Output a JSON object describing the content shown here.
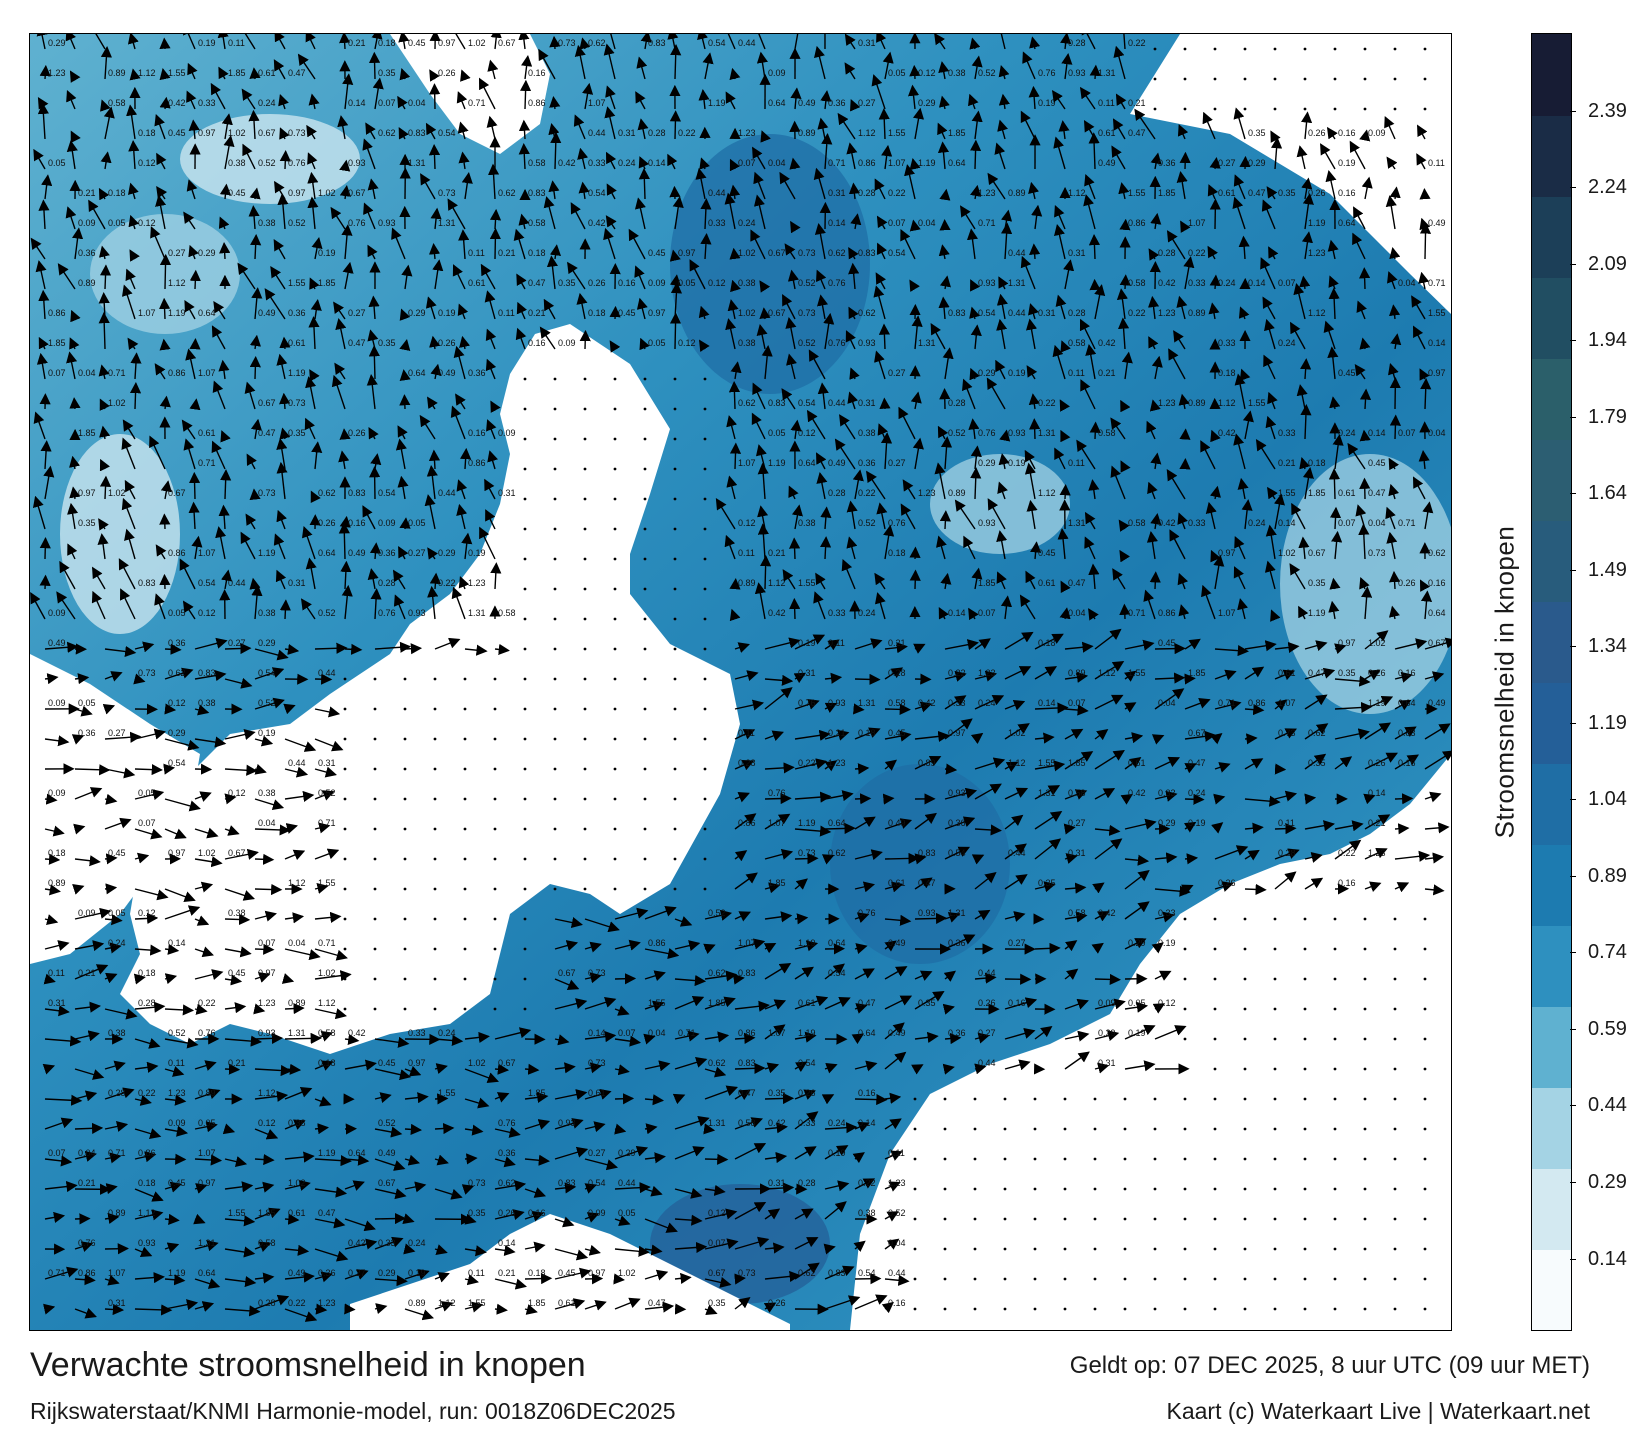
{
  "title": "Verwachte stroomsnelheid in knopen",
  "subtitle": "Rijkswaterstaat/KNMI Harmonie-model, run: 0018Z06DEC2025",
  "valid_time": "Geldt op: 07 DEC 2025, 8 uur UTC (09 uur MET)",
  "credit": "Kaart (c) Waterkaart Live | Waterkaart.net",
  "colorbar": {
    "label": "Stroomsnelheid in knopen",
    "ticks": [
      "2.39",
      "2.24",
      "2.09",
      "1.94",
      "1.79",
      "1.64",
      "1.49",
      "1.34",
      "1.19",
      "1.04",
      "0.89",
      "0.74",
      "0.59",
      "0.44",
      "0.29",
      "0.14"
    ],
    "range": [
      0.0,
      2.54
    ],
    "colors": [
      "#f7fbfd",
      "#d3e9f1",
      "#a4d3e4",
      "#5fb1d0",
      "#2e90bf",
      "#1d7bb0",
      "#1f6ea5",
      "#245f98",
      "#2a5a8c",
      "#285c7c",
      "#2c5e72",
      "#2b5f6a",
      "#214e62",
      "#1c3f58",
      "#1a2c46",
      "#171c34"
    ]
  },
  "map": {
    "sample_labels": [
      "0.29",
      "0.19",
      "0.11",
      "0.21",
      "0.18",
      "0.45",
      "0.97",
      "1.02",
      "0.67",
      "0.73",
      "0.62",
      "0.83",
      "0.54",
      "0.44",
      "0.31",
      "0.28",
      "0.22",
      "1.23",
      "0.89",
      "1.12",
      "1.55",
      "1.85",
      "0.61",
      "0.47",
      "0.35",
      "0.26",
      "0.16",
      "0.09",
      "0.05",
      "0.12",
      "0.38",
      "0.52",
      "0.76",
      "0.93",
      "1.31",
      "0.58",
      "0.42",
      "0.33",
      "0.24",
      "0.14",
      "0.07",
      "0.04",
      "0.71",
      "0.86",
      "1.07",
      "1.19",
      "0.64",
      "0.49",
      "0.36",
      "0.27"
    ]
  },
  "colors": {
    "land": "#ffffff",
    "frame": "#000000",
    "arrow": "#000000"
  }
}
